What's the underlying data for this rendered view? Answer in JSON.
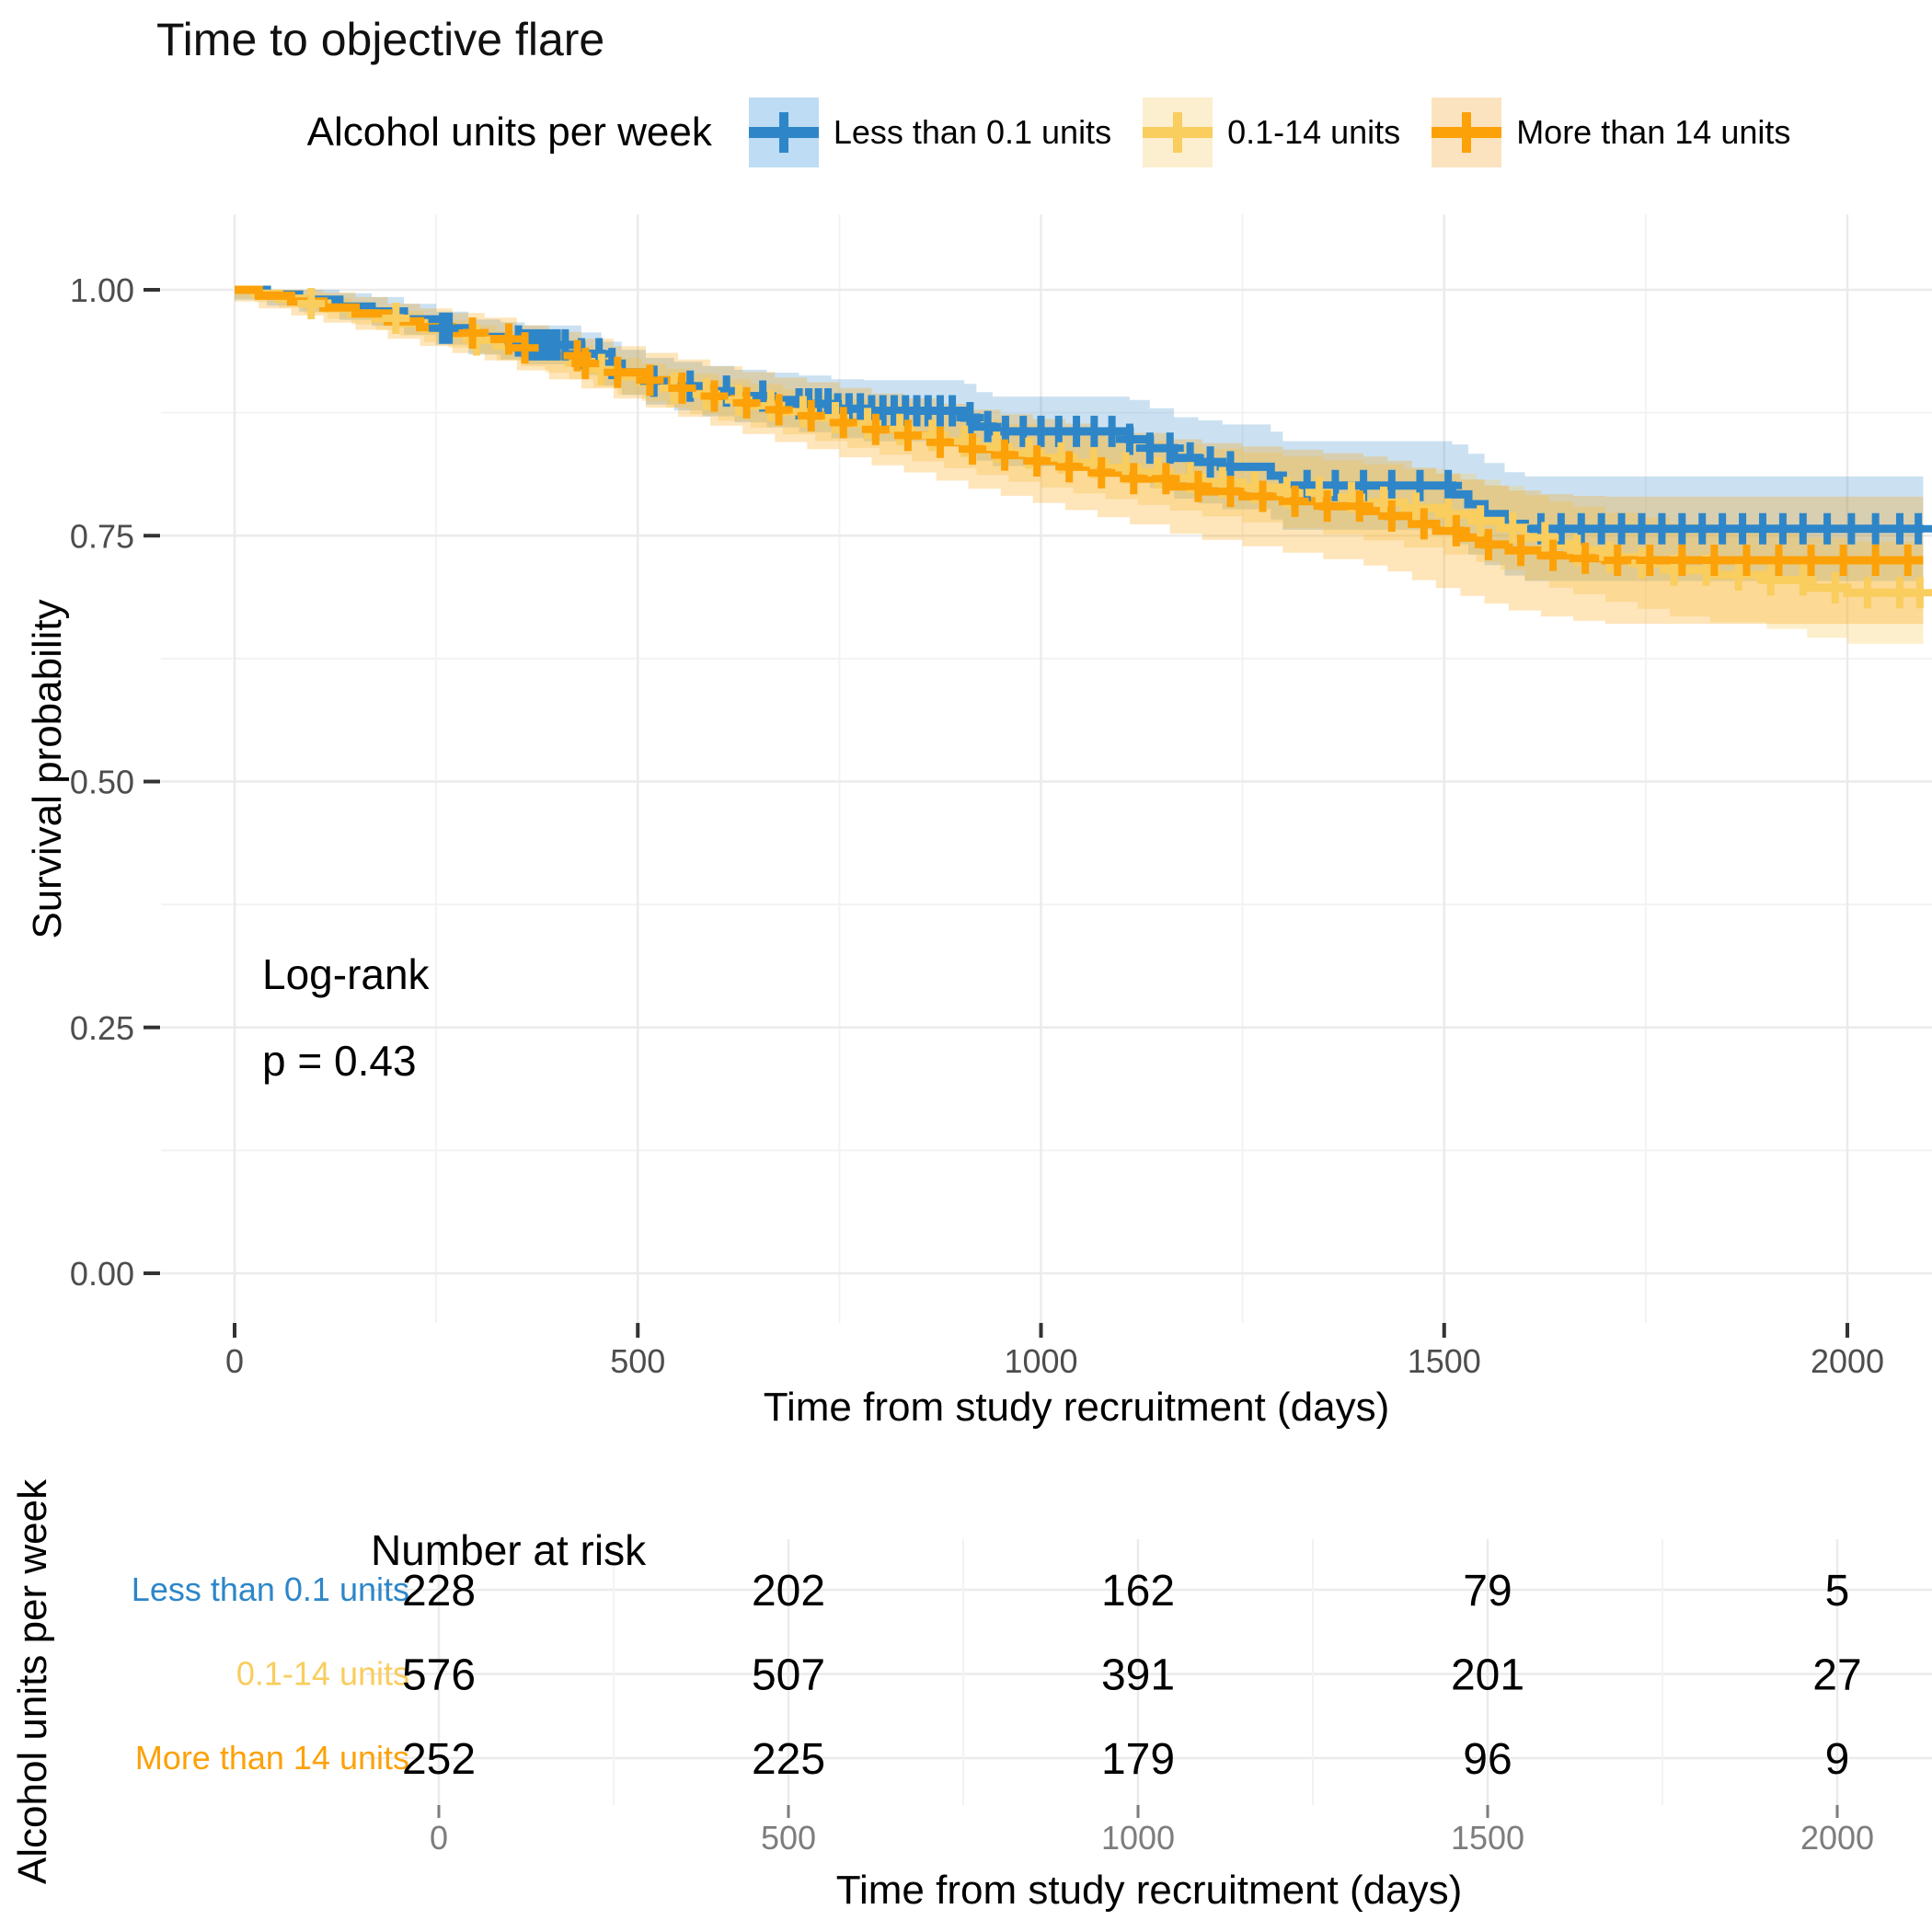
{
  "title": "Time to objective flare",
  "legend": {
    "title": "Alcohol units per week",
    "items": [
      {
        "label": "Less than 0.1 units",
        "color": "#2E86C8",
        "fill": "#BEDCF3"
      },
      {
        "label": "0.1-14 units",
        "color": "#F9CD5E",
        "fill": "#FCEFCF"
      },
      {
        "label": "More than 14 units",
        "color": "#FCA108",
        "fill": "#FBE3C0"
      }
    ]
  },
  "axes": {
    "x_title": "Time from study recruitment (days)",
    "y_title": "Survival probability",
    "x_ticks": [
      0,
      500,
      1000,
      1500,
      2000
    ],
    "x_minor_ticks": [
      250,
      750,
      1250,
      1750
    ],
    "y_ticks": [
      0,
      0.25,
      0.5,
      0.75,
      1.0
    ],
    "y_minor_ticks": [
      0.125,
      0.375,
      0.625,
      0.875
    ],
    "y_tick_labels": [
      "0.00",
      "0.25",
      "0.50",
      "0.75",
      "1.00"
    ]
  },
  "annotation": {
    "test": "Log-rank",
    "p_value": "p = 0.43"
  },
  "colors": {
    "grid_major": "#EBEBEB",
    "grid_minor": "#F3F3F3",
    "tick_mark": "#333333",
    "tick_label": "#4D4D4D",
    "risk_tick_label": "#7D7D7D"
  },
  "chart_data": {
    "type": "line",
    "subtype": "kaplan-meier-step",
    "title": "Time to objective flare",
    "xlabel": "Time from study recruitment (days)",
    "ylabel": "Survival probability",
    "xlim": [
      0,
      2094
    ],
    "ylim": [
      0,
      1
    ],
    "x_ticks": [
      0,
      500,
      1000,
      1500,
      2000
    ],
    "y_ticks": [
      0,
      0.25,
      0.5,
      0.75,
      1.0
    ],
    "grid": true,
    "legend_position": "top",
    "logrank_p": 0.43,
    "series": [
      {
        "name": "Less than 0.1 units",
        "color": "#2E86C8",
        "band_opacity": 0.25,
        "ci_base": 0.01,
        "ci_slope": 2.7e-05,
        "steps": [
          [
            0,
            1.0
          ],
          [
            40,
            0.995
          ],
          [
            80,
            0.99
          ],
          [
            130,
            0.983
          ],
          [
            170,
            0.978
          ],
          [
            210,
            0.97
          ],
          [
            250,
            0.961
          ],
          [
            290,
            0.952
          ],
          [
            330,
            0.948
          ],
          [
            360,
            0.944
          ],
          [
            430,
            0.935
          ],
          [
            455,
            0.925
          ],
          [
            480,
            0.916
          ],
          [
            510,
            0.907
          ],
          [
            545,
            0.902
          ],
          [
            580,
            0.897
          ],
          [
            620,
            0.892
          ],
          [
            660,
            0.888
          ],
          [
            700,
            0.884
          ],
          [
            740,
            0.879
          ],
          [
            780,
            0.877
          ],
          [
            905,
            0.87
          ],
          [
            920,
            0.861
          ],
          [
            940,
            0.856
          ],
          [
            1110,
            0.848
          ],
          [
            1135,
            0.839
          ],
          [
            1165,
            0.829
          ],
          [
            1195,
            0.825
          ],
          [
            1225,
            0.82
          ],
          [
            1285,
            0.811
          ],
          [
            1300,
            0.801
          ],
          [
            1510,
            0.792
          ],
          [
            1530,
            0.782
          ],
          [
            1550,
            0.772
          ],
          [
            1575,
            0.762
          ],
          [
            1600,
            0.757
          ],
          [
            2094,
            0.757
          ]
        ],
        "censor_times": [
          258,
          266,
          352,
          360,
          368,
          376,
          384,
          392,
          400,
          410,
          430,
          452,
          468,
          520,
          565,
          610,
          655,
          700,
          712,
          724,
          736,
          748,
          762,
          776,
          790,
          804,
          818,
          832,
          846,
          860,
          875,
          890,
          912,
          934,
          956,
          978,
          1000,
          1022,
          1044,
          1066,
          1088,
          1110,
          1135,
          1160,
          1185,
          1210,
          1235,
          1330,
          1365,
          1400,
          1435,
          1470,
          1505,
          1620,
          1645,
          1670,
          1695,
          1720,
          1745,
          1770,
          1795,
          1820,
          1845,
          1870,
          1895,
          1920,
          1945,
          1975,
          2005,
          2035,
          2065,
          2088
        ]
      },
      {
        "name": "0.1-14 units",
        "color": "#F9CD5E",
        "band_opacity": 0.32,
        "ci_base": 0.008,
        "ci_slope": 2.2e-05,
        "steps": [
          [
            0,
            1.0
          ],
          [
            25,
            0.996
          ],
          [
            55,
            0.991
          ],
          [
            85,
            0.986
          ],
          [
            115,
            0.981
          ],
          [
            145,
            0.976
          ],
          [
            175,
            0.971
          ],
          [
            205,
            0.966
          ],
          [
            235,
            0.96
          ],
          [
            265,
            0.955
          ],
          [
            295,
            0.949
          ],
          [
            325,
            0.943
          ],
          [
            355,
            0.938
          ],
          [
            385,
            0.932
          ],
          [
            415,
            0.926
          ],
          [
            445,
            0.919
          ],
          [
            475,
            0.912
          ],
          [
            505,
            0.906
          ],
          [
            535,
            0.9
          ],
          [
            565,
            0.894
          ],
          [
            600,
            0.888
          ],
          [
            640,
            0.882
          ],
          [
            680,
            0.876
          ],
          [
            720,
            0.87
          ],
          [
            760,
            0.864
          ],
          [
            800,
            0.858
          ],
          [
            840,
            0.852
          ],
          [
            880,
            0.846
          ],
          [
            920,
            0.84
          ],
          [
            960,
            0.834
          ],
          [
            1000,
            0.829
          ],
          [
            1040,
            0.824
          ],
          [
            1080,
            0.819
          ],
          [
            1120,
            0.814
          ],
          [
            1160,
            0.809
          ],
          [
            1200,
            0.804
          ],
          [
            1250,
            0.799
          ],
          [
            1300,
            0.794
          ],
          [
            1350,
            0.789
          ],
          [
            1400,
            0.784
          ],
          [
            1450,
            0.778
          ],
          [
            1500,
            0.772
          ],
          [
            1540,
            0.765
          ],
          [
            1570,
            0.758
          ],
          [
            1600,
            0.748
          ],
          [
            1630,
            0.741
          ],
          [
            1660,
            0.735
          ],
          [
            1700,
            0.728
          ],
          [
            1740,
            0.722
          ],
          [
            1780,
            0.715
          ],
          [
            1830,
            0.71
          ],
          [
            1900,
            0.705
          ],
          [
            1950,
            0.697
          ],
          [
            2000,
            0.692
          ],
          [
            2094,
            0.692
          ]
        ],
        "censor_times": [
          95,
          200,
          300,
          455,
          545,
          585,
          625,
          665,
          705,
          745,
          785,
          825,
          865,
          905,
          945,
          985,
          1025,
          1065,
          1105,
          1145,
          1185,
          1225,
          1265,
          1305,
          1345,
          1385,
          1425,
          1465,
          1505,
          1545,
          1585,
          1625,
          1665,
          1705,
          1745,
          1785,
          1825,
          1865,
          1905,
          1945,
          1985,
          2025,
          2065,
          2090
        ]
      },
      {
        "name": "More than 14 units",
        "color": "#FCA108",
        "band_opacity": 0.28,
        "ci_base": 0.012,
        "ci_slope": 3.1e-05,
        "steps": [
          [
            0,
            1.0
          ],
          [
            30,
            0.994
          ],
          [
            70,
            0.988
          ],
          [
            110,
            0.982
          ],
          [
            150,
            0.976
          ],
          [
            190,
            0.968
          ],
          [
            230,
            0.962
          ],
          [
            270,
            0.956
          ],
          [
            310,
            0.95
          ],
          [
            350,
            0.941
          ],
          [
            390,
            0.933
          ],
          [
            430,
            0.925
          ],
          [
            470,
            0.916
          ],
          [
            510,
            0.908
          ],
          [
            550,
            0.9
          ],
          [
            590,
            0.892
          ],
          [
            630,
            0.885
          ],
          [
            670,
            0.878
          ],
          [
            710,
            0.872
          ],
          [
            750,
            0.865
          ],
          [
            790,
            0.858
          ],
          [
            830,
            0.852
          ],
          [
            870,
            0.845
          ],
          [
            910,
            0.838
          ],
          [
            950,
            0.832
          ],
          [
            990,
            0.826
          ],
          [
            1030,
            0.82
          ],
          [
            1070,
            0.814
          ],
          [
            1110,
            0.808
          ],
          [
            1160,
            0.8
          ],
          [
            1200,
            0.795
          ],
          [
            1250,
            0.79
          ],
          [
            1300,
            0.785
          ],
          [
            1350,
            0.78
          ],
          [
            1400,
            0.775
          ],
          [
            1430,
            0.77
          ],
          [
            1460,
            0.762
          ],
          [
            1490,
            0.755
          ],
          [
            1520,
            0.748
          ],
          [
            1550,
            0.741
          ],
          [
            1580,
            0.735
          ],
          [
            1620,
            0.73
          ],
          [
            1660,
            0.727
          ],
          [
            1700,
            0.725
          ],
          [
            2094,
            0.725
          ]
        ],
        "censor_times": [
          295,
          340,
          360,
          425,
          435,
          475,
          515,
          555,
          595,
          635,
          675,
          715,
          755,
          795,
          835,
          875,
          915,
          955,
          995,
          1035,
          1075,
          1115,
          1155,
          1195,
          1235,
          1275,
          1315,
          1355,
          1395,
          1435,
          1475,
          1515,
          1555,
          1595,
          1635,
          1675,
          1715,
          1755,
          1795,
          1835,
          1875,
          1915,
          1955,
          1995,
          2035,
          2075
        ]
      }
    ]
  },
  "risk_table": {
    "title": "Number at risk",
    "axis_label": "Alcohol units per week",
    "x_axis_title": "Time from study recruitment (days)",
    "time_points": [
      0,
      500,
      1000,
      1500,
      2000
    ],
    "rows": [
      {
        "label": "Less than 0.1 units",
        "color": "#2E86C8",
        "values": [
          228,
          202,
          162,
          79,
          5
        ]
      },
      {
        "label": "0.1-14 units",
        "color": "#F9CD5E",
        "values": [
          576,
          507,
          391,
          201,
          27
        ]
      },
      {
        "label": "More than 14 units",
        "color": "#FCA108",
        "values": [
          252,
          225,
          179,
          96,
          9
        ]
      }
    ]
  }
}
